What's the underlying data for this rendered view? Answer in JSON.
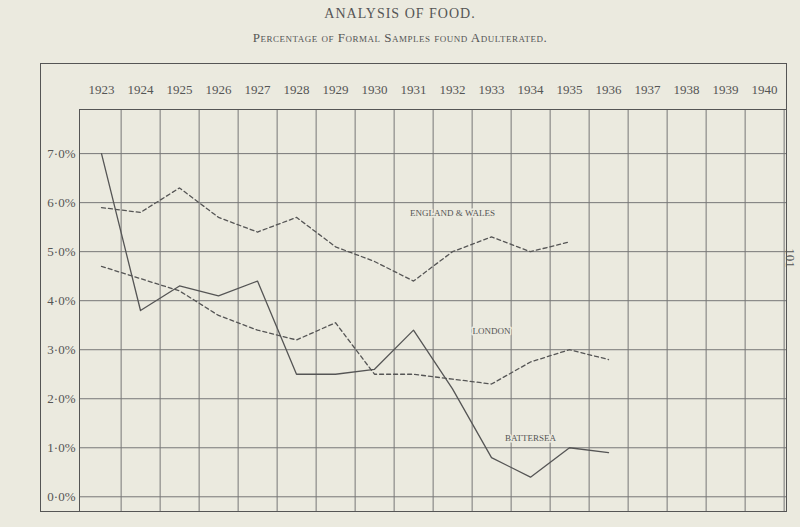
{
  "page_number": "101",
  "chart_data": {
    "type": "line",
    "title": "ANALYSIS OF FOOD.",
    "subtitle": "Percentage of Formal Samples found Adulterated.",
    "categories": [
      "1923",
      "1924",
      "1925",
      "1926",
      "1927",
      "1928",
      "1929",
      "1930",
      "1931",
      "1932",
      "1933",
      "1934",
      "1935",
      "1936",
      "1937",
      "1938",
      "1939",
      "1940"
    ],
    "series": [
      {
        "name": "ENGLAND & WALES",
        "color": "#555555",
        "line_style": "dashed",
        "values": [
          5.9,
          5.8,
          6.3,
          5.7,
          5.4,
          5.7,
          5.1,
          4.8,
          4.4,
          5.0,
          5.3,
          5.0,
          5.2,
          null,
          null,
          null,
          null,
          null
        ]
      },
      {
        "name": "LONDON",
        "color": "#555555",
        "line_style": "dashed",
        "values": [
          4.7,
          4.45,
          4.2,
          3.7,
          3.4,
          3.2,
          3.55,
          2.5,
          2.5,
          2.4,
          2.3,
          2.75,
          3.0,
          2.8,
          null,
          null,
          null,
          null
        ]
      },
      {
        "name": "BATTERSEA",
        "color": "#555555",
        "line_style": "solid",
        "values": [
          7.0,
          3.8,
          4.3,
          4.1,
          4.4,
          2.5,
          2.5,
          2.6,
          3.4,
          2.2,
          0.8,
          0.4,
          1.0,
          0.9,
          null,
          null,
          null,
          null
        ]
      }
    ],
    "ylim": [
      -0.3,
      7.9
    ],
    "yticks": [
      {
        "value": 0,
        "label": "0·0%"
      },
      {
        "value": 1,
        "label": "1·0%"
      },
      {
        "value": 2,
        "label": "2·0%"
      },
      {
        "value": 3,
        "label": "3·0%"
      },
      {
        "value": 4,
        "label": "4·0%"
      },
      {
        "value": 5,
        "label": "5·0%"
      },
      {
        "value": 6,
        "label": "6·0%"
      },
      {
        "value": 7,
        "label": "7·0%"
      }
    ],
    "grid": true
  }
}
